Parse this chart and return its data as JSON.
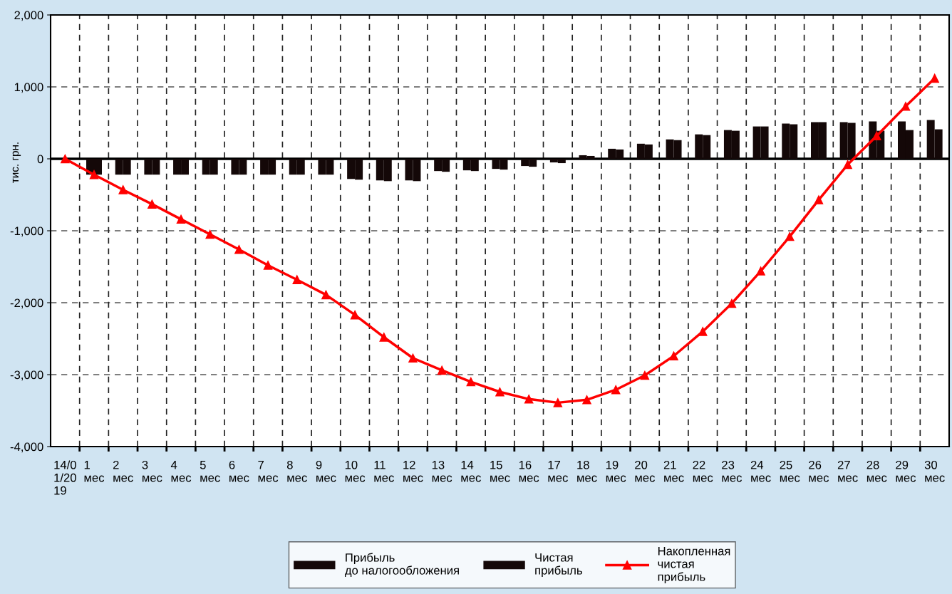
{
  "chart_data": {
    "type": "bar",
    "categories": [
      "14/01/2019",
      "1 мес",
      "2 мес",
      "3 мес",
      "4 мес",
      "5 мес",
      "6 мес",
      "7 мес",
      "8 мес",
      "9 мес",
      "10 мес",
      "11 мес",
      "12 мес",
      "13 мес",
      "14 мес",
      "15 мес",
      "16 мес",
      "17 мес",
      "18 мес",
      "19 мес",
      "20 мес",
      "21 мес",
      "22 мес",
      "23 мес",
      "24 мес",
      "25 мес",
      "26 мес",
      "27 мес",
      "28 мес",
      "29 мес",
      "30 мес"
    ],
    "series": [
      {
        "name": "Прибыль до налогообложения",
        "color": "#140808",
        "values": [
          0,
          -220,
          -220,
          -220,
          -220,
          -220,
          -220,
          -220,
          -220,
          -220,
          -280,
          -300,
          -300,
          -170,
          -160,
          -140,
          -100,
          -50,
          50,
          140,
          210,
          270,
          340,
          400,
          450,
          490,
          510,
          510,
          520,
          520,
          540
        ]
      },
      {
        "name": "Чистая прибыль",
        "color": "#140808",
        "values": [
          0,
          -220,
          -220,
          -220,
          -220,
          -220,
          -220,
          -220,
          -220,
          -220,
          -290,
          -310,
          -310,
          -180,
          -170,
          -150,
          -110,
          -60,
          40,
          130,
          200,
          260,
          330,
          390,
          450,
          480,
          510,
          500,
          390,
          400,
          410
        ]
      },
      {
        "name": "Накопленная чистая прибыль",
        "color": "#ff0000",
        "type": "line",
        "marker": "triangle",
        "values": [
          0,
          -220,
          -430,
          -630,
          -840,
          -1050,
          -1260,
          -1480,
          -1680,
          -1890,
          -2170,
          -2480,
          -2770,
          -2940,
          -3100,
          -3240,
          -3340,
          -3390,
          -3350,
          -3210,
          -3010,
          -2740,
          -2400,
          -2010,
          -1560,
          -1080,
          -570,
          -80,
          320,
          730,
          1120
        ]
      }
    ],
    "ylabel": "тис. грн.",
    "ylim": [
      -4000,
      2000
    ],
    "yticks": [
      {
        "value": -4000,
        "label": "-4,000"
      },
      {
        "value": -3000,
        "label": "-3,000"
      },
      {
        "value": -2000,
        "label": "-2,000"
      },
      {
        "value": -1000,
        "label": "-1,000"
      },
      {
        "value": 0,
        "label": "0"
      },
      {
        "value": 1000,
        "label": "1,000"
      },
      {
        "value": 2000,
        "label": "2,000"
      }
    ],
    "grid": true,
    "legend": "bottom"
  }
}
